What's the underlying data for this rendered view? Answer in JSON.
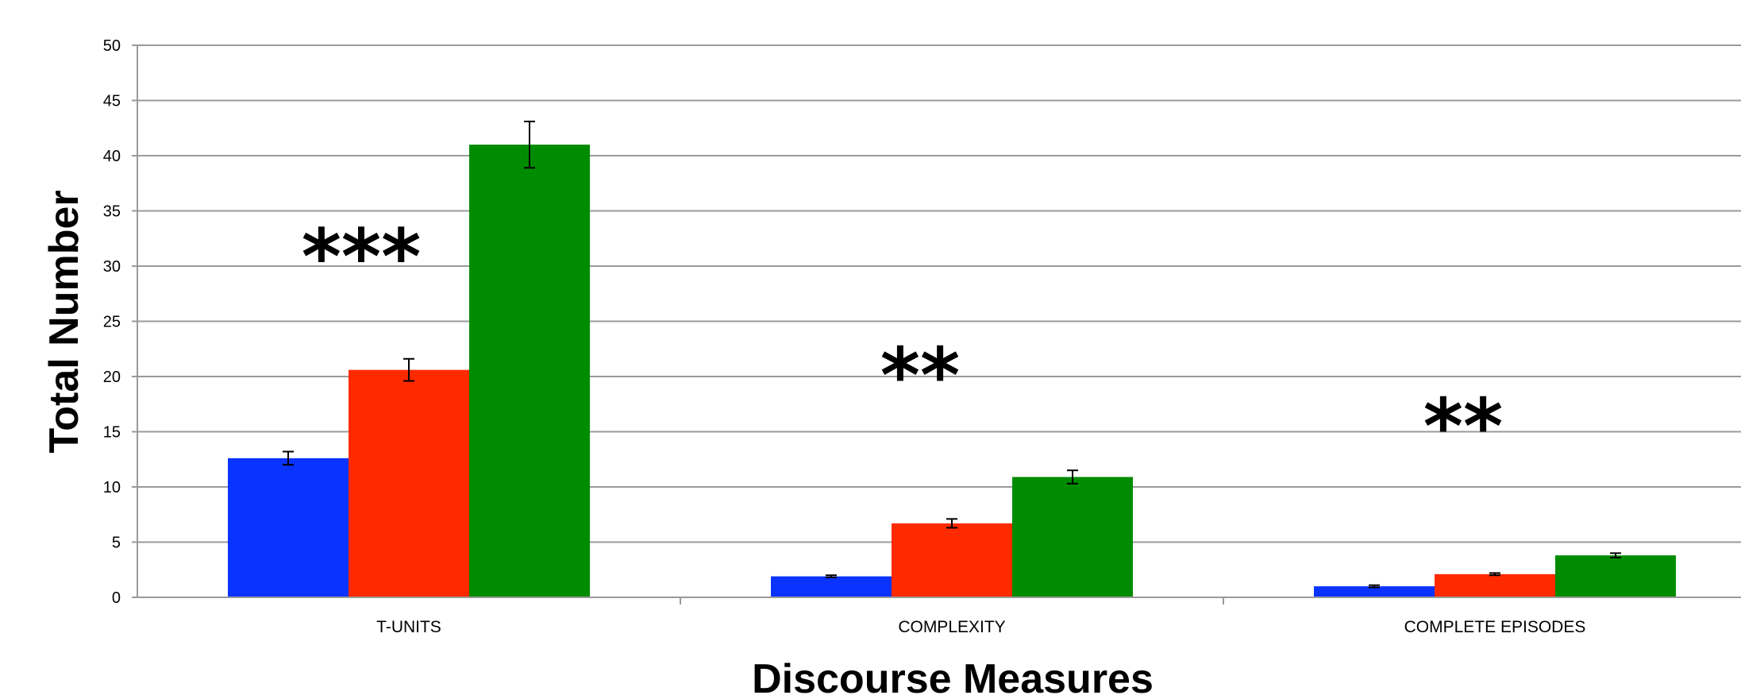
{
  "chart_data": {
    "type": "bar",
    "title": "",
    "xlabel": "Discourse Measures",
    "ylabel": "Total Number",
    "ylim": [
      0,
      50
    ],
    "yticks": [
      0,
      5,
      10,
      15,
      20,
      25,
      30,
      35,
      40,
      45,
      50
    ],
    "grid": true,
    "legend": "none",
    "categories": [
      "T-UNITS",
      "COMPLEXITY",
      "COMPLETE EPISODES"
    ],
    "series": [
      {
        "color": "#0a33ff",
        "values": [
          12.6,
          1.9,
          1.0
        ],
        "errors": [
          0.6,
          0.1,
          0.1
        ]
      },
      {
        "color": "#ff2a00",
        "values": [
          20.6,
          6.7,
          2.1
        ],
        "errors": [
          1.0,
          0.4,
          0.1
        ]
      },
      {
        "color": "#008c00",
        "values": [
          41.0,
          10.9,
          3.8
        ],
        "errors": [
          2.1,
          0.6,
          0.2
        ]
      }
    ],
    "annotations": [
      "***",
      "**",
      "**"
    ]
  }
}
